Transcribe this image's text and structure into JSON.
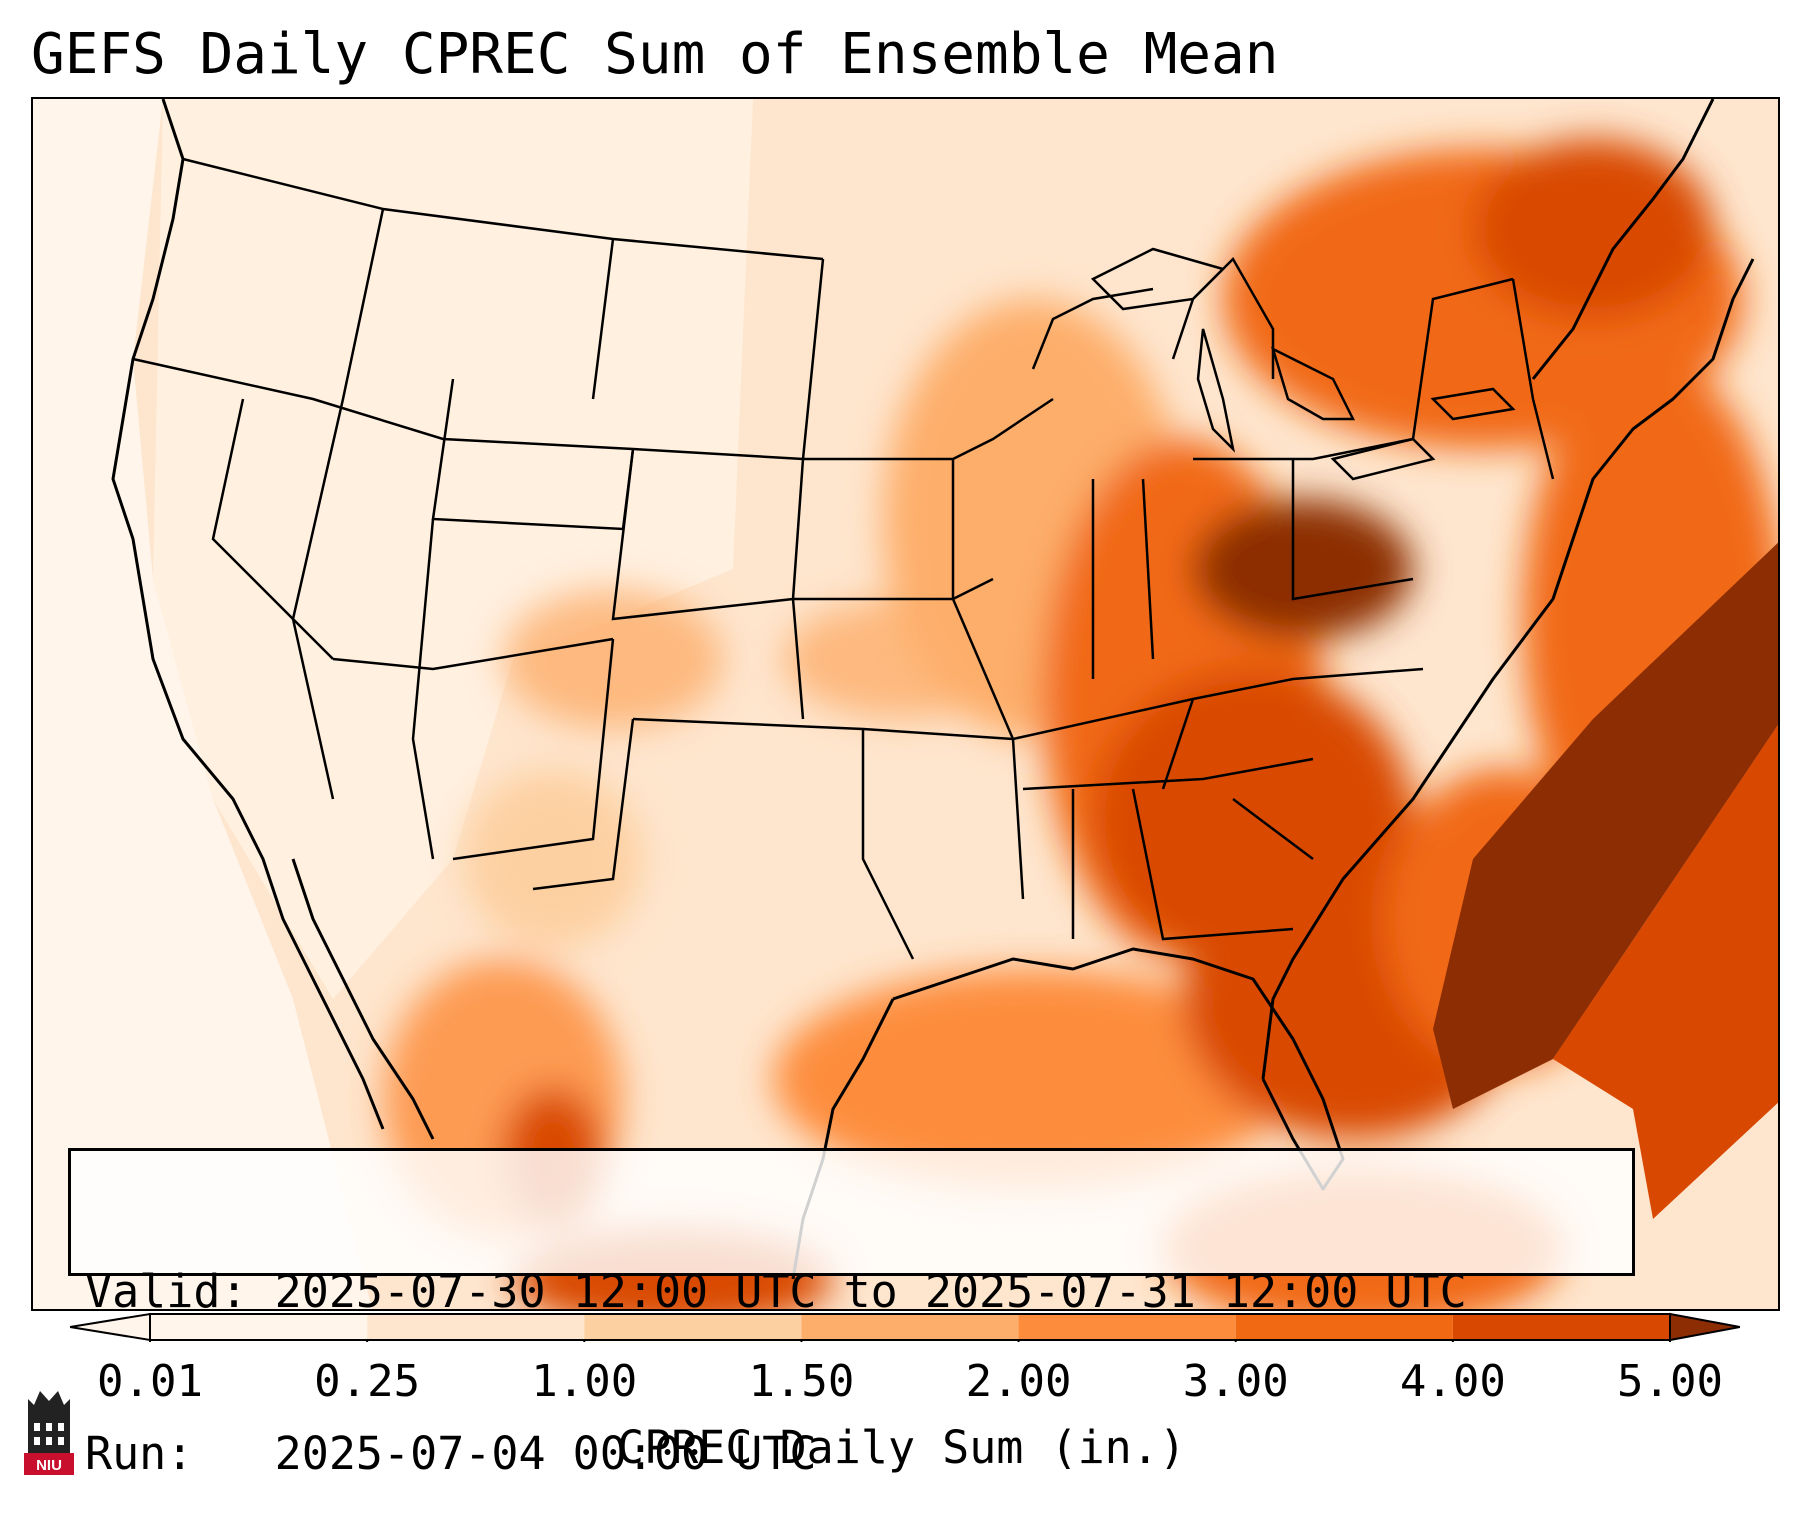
{
  "title": "GEFS Daily CPREC Sum of Ensemble Mean",
  "info": {
    "valid_line": "Valid: 2025-07-30 12:00 UTC to 2025-07-31 12:00 UTC",
    "run_line": "Run:   2025-07-04 00:00 UTC"
  },
  "colorbar": {
    "label": "CPREC Daily Sum (in.)",
    "ticks": [
      "0.01",
      "0.25",
      "1.00",
      "1.50",
      "2.00",
      "3.00",
      "4.00",
      "5.00"
    ],
    "colors": [
      "#fff5eb",
      "#fee6ce",
      "#fdd0a2",
      "#fdae6b",
      "#fd8d3c",
      "#f16913",
      "#d94801",
      "#8c2d04"
    ]
  },
  "logo": {
    "text": "NIU",
    "color": "#c8102e"
  },
  "map": {
    "icons": [
      "state-borders",
      "coastlines",
      "precipitation-shading"
    ]
  }
}
